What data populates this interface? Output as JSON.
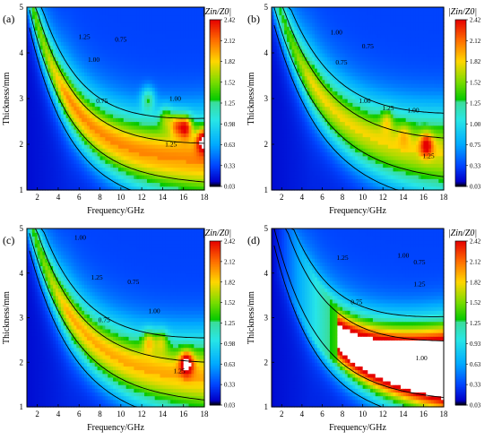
{
  "chart_data": [
    {
      "type": "heatmap",
      "panel_label": "(a)",
      "xlabel": "Frequency/GHz",
      "ylabel": "Thickness/mm",
      "xlim": [
        1,
        18
      ],
      "ylim": [
        1,
        5
      ],
      "x_ticks": [
        2,
        4,
        6,
        8,
        10,
        12,
        14,
        16,
        18
      ],
      "y_ticks": [
        1,
        2,
        3,
        4,
        5
      ],
      "colorbar": {
        "title": "|Zin/Z0|",
        "ticks": [
          "2.42",
          "2.12",
          "1.82",
          "1.52",
          "1.25",
          "0.98",
          "0.63",
          "0.33",
          "0.03"
        ]
      },
      "contour_labels": [
        {
          "text": "1.25",
          "x": 6.5,
          "y": 4.3
        },
        {
          "text": "1.00",
          "x": 7.4,
          "y": 3.8
        },
        {
          "text": "0.75",
          "x": 10.0,
          "y": 4.25
        },
        {
          "text": "0.75",
          "x": 8.2,
          "y": 2.9
        },
        {
          "text": "1.00",
          "x": 15.2,
          "y": 2.95
        },
        {
          "text": "1.25",
          "x": 14.8,
          "y": 1.95
        }
      ],
      "hotspots": [
        {
          "x": 12.6,
          "y": 3.0,
          "value": 2.0
        },
        {
          "x": 14.3,
          "y": 2.6,
          "value": 1.9
        },
        {
          "x": 15.3,
          "y": 2.45,
          "value": 2.1
        },
        {
          "x": 16.2,
          "y": 2.4,
          "value": 2.42
        },
        {
          "x": 17.9,
          "y": 2.1,
          "value": 2.4
        }
      ]
    },
    {
      "type": "heatmap",
      "panel_label": "(b)",
      "xlabel": "Frequency/GHz",
      "ylabel": "Thickness/mm",
      "xlim": [
        1,
        18
      ],
      "ylim": [
        1,
        5
      ],
      "x_ticks": [
        2,
        4,
        6,
        8,
        10,
        12,
        14,
        16,
        18
      ],
      "y_ticks": [
        1,
        2,
        3,
        4,
        5
      ],
      "colorbar": {
        "title": "|Zin/Z0|",
        "ticks": [
          "2.42",
          "2.12",
          "1.82",
          "1.52",
          "1.25",
          "1.00",
          "0.75",
          "0.33",
          "0.03"
        ]
      },
      "contour_labels": [
        {
          "text": "1.00",
          "x": 7.4,
          "y": 4.4
        },
        {
          "text": "0.75",
          "x": 10.5,
          "y": 4.1
        },
        {
          "text": "0.75",
          "x": 7.9,
          "y": 3.75
        },
        {
          "text": "1.00",
          "x": 10.2,
          "y": 2.9
        },
        {
          "text": "1.25",
          "x": 12.5,
          "y": 2.75
        },
        {
          "text": "1.00",
          "x": 15.0,
          "y": 2.7
        },
        {
          "text": "1.25",
          "x": 16.5,
          "y": 1.7
        }
      ],
      "hotspots": [
        {
          "x": 12.4,
          "y": 2.55,
          "value": 1.8
        },
        {
          "x": 14.1,
          "y": 2.25,
          "value": 1.6
        },
        {
          "x": 16.3,
          "y": 2.0,
          "value": 2.1
        }
      ]
    },
    {
      "type": "heatmap",
      "panel_label": "(c)",
      "xlabel": "Frequency/GHz",
      "ylabel": "Thickness/mm",
      "xlim": [
        1,
        18
      ],
      "ylim": [
        1,
        5
      ],
      "x_ticks": [
        2,
        4,
        6,
        8,
        10,
        12,
        14,
        16,
        18
      ],
      "y_ticks": [
        1,
        2,
        3,
        4,
        5
      ],
      "colorbar": {
        "title": "|Zin/Z0|",
        "ticks": [
          "2.42",
          "2.12",
          "1.82",
          "1.52",
          "1.25",
          "0.98",
          "0.63",
          "0.33",
          "0.03"
        ]
      },
      "contour_labels": [
        {
          "text": "1.00",
          "x": 6.1,
          "y": 4.75
        },
        {
          "text": "1.25",
          "x": 7.7,
          "y": 3.85
        },
        {
          "text": "0.75",
          "x": 11.2,
          "y": 3.75
        },
        {
          "text": "1.00",
          "x": 13.2,
          "y": 3.1
        },
        {
          "text": "0.75",
          "x": 8.4,
          "y": 2.9
        },
        {
          "text": "1.25",
          "x": 15.6,
          "y": 1.75
        }
      ],
      "hotspots": [
        {
          "x": 12.7,
          "y": 2.5,
          "value": 2.0
        },
        {
          "x": 13.9,
          "y": 2.5,
          "value": 1.9
        },
        {
          "x": 16.3,
          "y": 2.0,
          "value": 2.42
        }
      ]
    },
    {
      "type": "heatmap",
      "panel_label": "(d)",
      "xlabel": "Frequency/GHz",
      "ylabel": "Thickness/mm",
      "xlim": [
        1,
        18
      ],
      "ylim": [
        1,
        5
      ],
      "x_ticks": [
        2,
        4,
        6,
        8,
        10,
        12,
        14,
        16,
        18
      ],
      "y_ticks": [
        1,
        2,
        3,
        4,
        5
      ],
      "colorbar": {
        "title": "|Zin/Z0|",
        "ticks": [
          "2.42",
          "2.12",
          "1.82",
          "1.52",
          "1.25",
          "0.93",
          "0.63",
          "0.33",
          "0.03"
        ]
      },
      "contour_labels": [
        {
          "text": "1.25",
          "x": 8.0,
          "y": 4.3
        },
        {
          "text": "1.00",
          "x": 14.0,
          "y": 4.35
        },
        {
          "text": "0.75",
          "x": 15.6,
          "y": 4.2
        },
        {
          "text": "1.25",
          "x": 15.6,
          "y": 3.7
        },
        {
          "text": "0.75",
          "x": 9.4,
          "y": 3.3
        },
        {
          "text": "1.00",
          "x": 15.8,
          "y": 2.05
        }
      ],
      "saturated_band": {
        "value_min": 2.42,
        "description": "values above colorbar maximum"
      }
    }
  ]
}
